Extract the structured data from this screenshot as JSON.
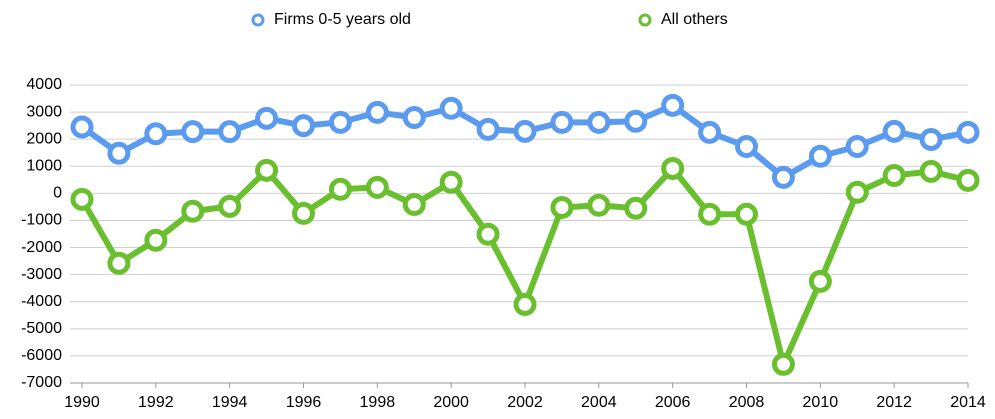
{
  "chart_data": {
    "type": "line",
    "x": [
      1990,
      1991,
      1992,
      1993,
      1994,
      1995,
      1996,
      1997,
      1998,
      1999,
      2000,
      2001,
      2002,
      2003,
      2004,
      2005,
      2006,
      2007,
      2008,
      2009,
      2010,
      2011,
      2012,
      2013,
      2014
    ],
    "series": [
      {
        "name": "Firms 0-5 years old",
        "color": "#5b9bef",
        "values": [
          2450,
          1480,
          2200,
          2280,
          2280,
          2770,
          2500,
          2620,
          2990,
          2800,
          3140,
          2360,
          2290,
          2620,
          2620,
          2660,
          3250,
          2250,
          1730,
          590,
          1370,
          1730,
          2290,
          1990,
          2250
        ]
      },
      {
        "name": "All others",
        "color": "#6abf2e",
        "values": [
          -220,
          -2580,
          -1730,
          -660,
          -480,
          850,
          -740,
          150,
          220,
          -410,
          410,
          -1510,
          -4100,
          -520,
          -440,
          -550,
          920,
          -770,
          -770,
          -6310,
          -3250,
          40,
          660,
          810,
          480
        ]
      }
    ],
    "xlim": [
      1990,
      2014
    ],
    "xticks": [
      1990,
      1992,
      1994,
      1996,
      1998,
      2000,
      2002,
      2004,
      2006,
      2008,
      2010,
      2012,
      2014
    ],
    "ylim": [
      -7000,
      4000
    ],
    "yticks": [
      -7000,
      -6000,
      -5000,
      -4000,
      -3000,
      -2000,
      -1000,
      0,
      1000,
      2000,
      3000,
      4000
    ],
    "grid": true,
    "legend": "top"
  }
}
